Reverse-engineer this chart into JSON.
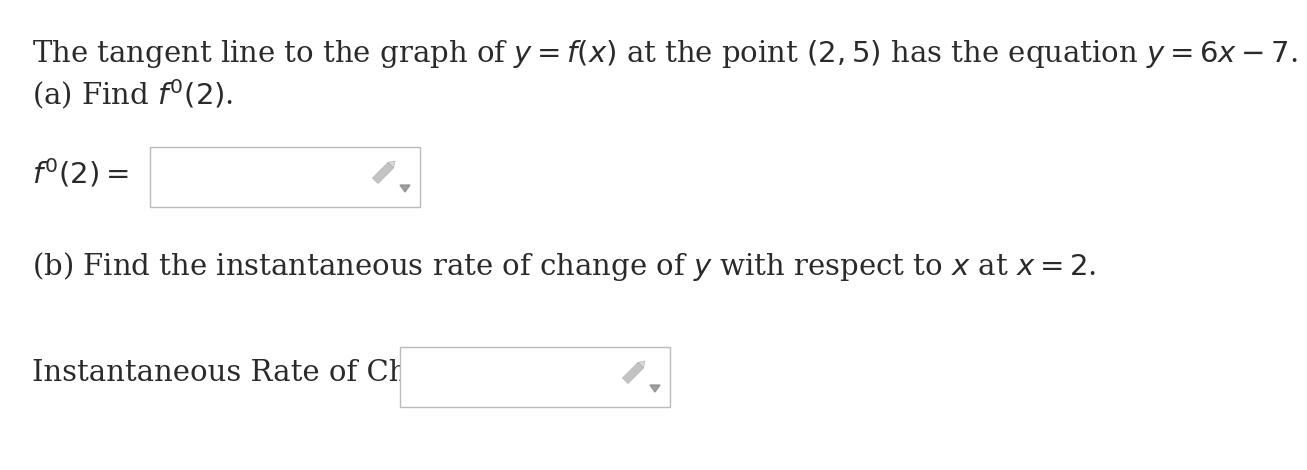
{
  "bg_color": "#ffffff",
  "text_color": "#2a2a2a",
  "line1": "The tangent line to the graph of $y = f(x)$ at the point $(2, 5)$ has the equation $y = 6x - 7$.",
  "line2": "(a) Find $f'(2)$.",
  "label_a": "$f'(2) =$",
  "line3": "(b) Find the instantaneous rate of change of $y$ with respect to $x$ at $x = 2$.",
  "label_b": "Instantaneous Rate of Change =",
  "box_color": "#ffffff",
  "box_edge_color": "#bbbbbb",
  "font_size_main": 21,
  "pencil_color": "#aaaaaa",
  "arrow_color": "#888888"
}
